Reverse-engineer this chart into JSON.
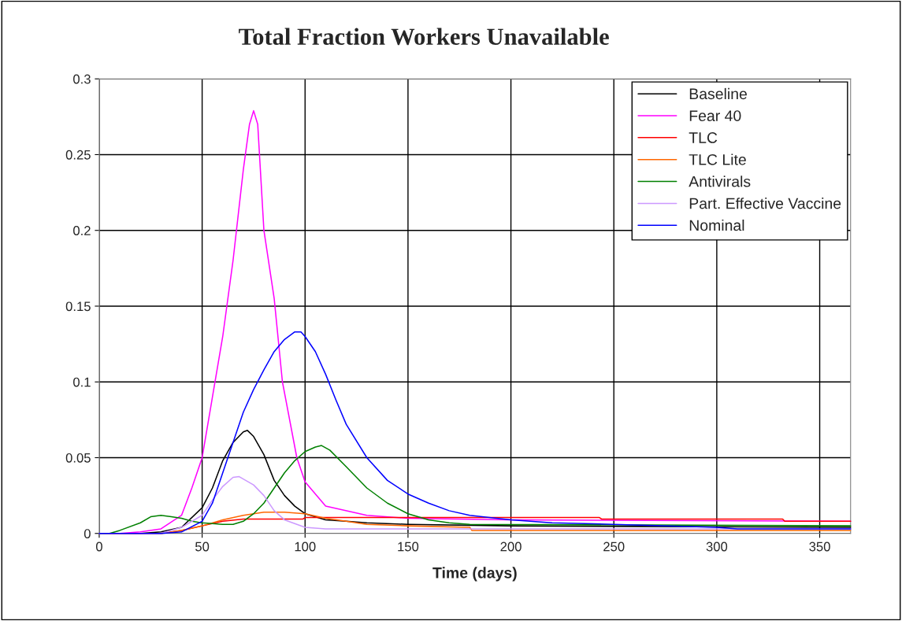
{
  "chart_data": {
    "type": "line",
    "title": "Total Fraction Workers Unavailable",
    "xlabel": "Time (days)",
    "xlim": [
      0,
      365
    ],
    "xticks": [
      0,
      50,
      100,
      150,
      200,
      250,
      300,
      350
    ],
    "ylim": [
      0,
      0.3
    ],
    "yticks": [
      0,
      0.05,
      0.1,
      0.15,
      0.2,
      0.25,
      0.3
    ],
    "grid": true,
    "legend": "top right",
    "marker": "none",
    "line_style": "solid",
    "series": [
      {
        "name": "Baseline",
        "color": "#000000",
        "x": [
          0,
          20,
          30,
          40,
          50,
          55,
          60,
          65,
          70,
          72,
          75,
          80,
          85,
          90,
          95,
          100,
          110,
          120,
          130,
          150,
          200,
          365
        ],
        "values": [
          0,
          0,
          0.001,
          0.004,
          0.017,
          0.03,
          0.048,
          0.06,
          0.067,
          0.068,
          0.064,
          0.052,
          0.035,
          0.025,
          0.018,
          0.013,
          0.009,
          0.008,
          0.007,
          0.006,
          0.005,
          0.004
        ]
      },
      {
        "name": "Fear 40",
        "color": "#ff00ff",
        "x": [
          0,
          10,
          20,
          30,
          40,
          45,
          50,
          55,
          60,
          65,
          70,
          73,
          75,
          77,
          80,
          85,
          89,
          96,
          100,
          110,
          130,
          150,
          200,
          365
        ],
        "values": [
          0,
          0,
          0.001,
          0.003,
          0.012,
          0.03,
          0.05,
          0.09,
          0.13,
          0.18,
          0.24,
          0.27,
          0.279,
          0.27,
          0.2,
          0.155,
          0.1,
          0.05,
          0.034,
          0.018,
          0.012,
          0.01,
          0.009,
          0.008
        ]
      },
      {
        "name": "TLC",
        "color": "#ff0000",
        "x": [
          0,
          30,
          40,
          50,
          60,
          70,
          99,
          100,
          243,
          244,
          332,
          333,
          365
        ],
        "values": [
          0,
          0,
          0.002,
          0.005,
          0.008,
          0.0095,
          0.0095,
          0.0105,
          0.0105,
          0.0095,
          0.0095,
          0.008,
          0.008
        ]
      },
      {
        "name": "TLC Lite",
        "color": "#ff6600",
        "x": [
          0,
          30,
          40,
          50,
          60,
          70,
          80,
          90,
          100,
          110,
          120,
          130,
          150,
          180,
          181,
          365
        ],
        "values": [
          0,
          0,
          0.002,
          0.005,
          0.009,
          0.012,
          0.014,
          0.014,
          0.013,
          0.01,
          0.008,
          0.006,
          0.005,
          0.004,
          0.002,
          0.002
        ]
      },
      {
        "name": "Antivirals",
        "color": "#008000",
        "x": [
          0,
          5,
          10,
          20,
          25,
          30,
          35,
          40,
          45,
          50,
          60,
          65,
          70,
          75,
          80,
          85,
          90,
          95,
          100,
          105,
          108,
          112,
          120,
          130,
          140,
          150,
          160,
          170,
          180,
          365
        ],
        "values": [
          0,
          0,
          0.002,
          0.007,
          0.011,
          0.012,
          0.011,
          0.01,
          0.008,
          0.007,
          0.006,
          0.006,
          0.008,
          0.013,
          0.02,
          0.03,
          0.04,
          0.048,
          0.054,
          0.057,
          0.058,
          0.055,
          0.044,
          0.03,
          0.02,
          0.013,
          0.009,
          0.007,
          0.006,
          0.005
        ]
      },
      {
        "name": "Part. Effective Vaccine",
        "color": "#cc99ff",
        "x": [
          0,
          30,
          40,
          50,
          55,
          60,
          65,
          68,
          75,
          80,
          85,
          90,
          100,
          110,
          365
        ],
        "values": [
          0,
          0,
          0.004,
          0.012,
          0.022,
          0.031,
          0.037,
          0.0375,
          0.032,
          0.025,
          0.015,
          0.009,
          0.004,
          0.003,
          0.003
        ]
      },
      {
        "name": "Nominal",
        "color": "#0000ff",
        "x": [
          0,
          30,
          40,
          50,
          55,
          60,
          65,
          70,
          75,
          80,
          85,
          90,
          95,
          98,
          100,
          105,
          110,
          115,
          120,
          130,
          140,
          150,
          160,
          170,
          180,
          200,
          220,
          250,
          300,
          310,
          365
        ],
        "values": [
          0,
          0,
          0.001,
          0.008,
          0.02,
          0.04,
          0.06,
          0.08,
          0.095,
          0.108,
          0.12,
          0.128,
          0.133,
          0.133,
          0.13,
          0.12,
          0.105,
          0.088,
          0.072,
          0.05,
          0.035,
          0.026,
          0.02,
          0.015,
          0.012,
          0.009,
          0.007,
          0.006,
          0.004,
          0.003,
          0.003
        ]
      }
    ]
  }
}
